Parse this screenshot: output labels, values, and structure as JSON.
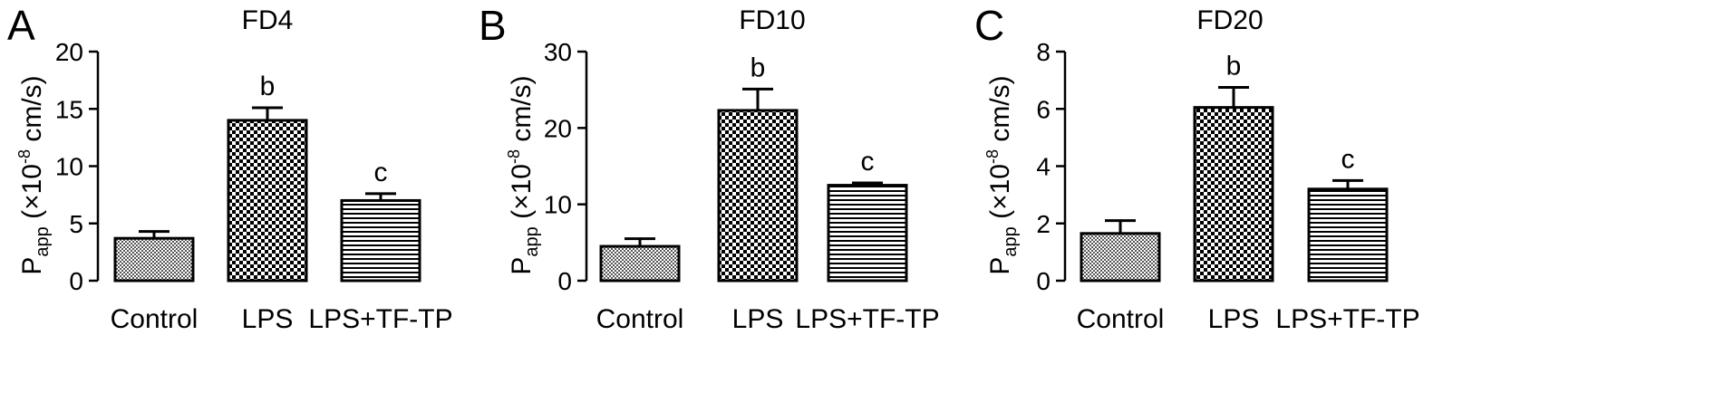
{
  "colors": {
    "axis": "#000000",
    "bar_stroke": "#000000",
    "pattern_fine": "#555555",
    "pattern_check": "#000000",
    "pattern_stripe": "#000000"
  },
  "y_label": {
    "main": "P",
    "sub": "app",
    "pre": " (×10",
    "sup": "-8",
    "post": " cm/s)"
  },
  "chart_data": [
    {
      "type": "bar",
      "panel": "A",
      "title": "FD4",
      "categories": [
        "Control",
        "LPS",
        "LPS+TF-TP"
      ],
      "values": [
        3.7,
        14.0,
        7.0
      ],
      "errors": [
        0.6,
        1.1,
        0.6
      ],
      "annotations": [
        "",
        "b",
        "c"
      ],
      "patterns": [
        "fine",
        "check",
        "stripe"
      ],
      "ylabel": "Papp (×10-8 cm/s)",
      "ylim": [
        0,
        20
      ],
      "yticks": [
        0,
        5,
        10,
        15,
        20
      ]
    },
    {
      "type": "bar",
      "panel": "B",
      "title": "FD10",
      "categories": [
        "Control",
        "LPS",
        "LPS+TF-TP"
      ],
      "values": [
        4.5,
        22.3,
        12.5
      ],
      "errors": [
        1.0,
        2.8,
        0.3
      ],
      "annotations": [
        "",
        "b",
        "c"
      ],
      "patterns": [
        "fine",
        "check",
        "stripe"
      ],
      "ylabel": "Papp (×10-8 cm/s)",
      "ylim": [
        0,
        30
      ],
      "yticks": [
        0,
        10,
        20,
        30
      ]
    },
    {
      "type": "bar",
      "panel": "C",
      "title": "FD20",
      "categories": [
        "Control",
        "LPS",
        "LPS+TF-TP"
      ],
      "values": [
        1.65,
        6.05,
        3.2
      ],
      "errors": [
        0.45,
        0.7,
        0.3
      ],
      "annotations": [
        "",
        "b",
        "c"
      ],
      "patterns": [
        "fine",
        "check",
        "stripe"
      ],
      "ylabel": "Papp (×10-8 cm/s)",
      "ylim": [
        0,
        8
      ],
      "yticks": [
        0,
        2,
        4,
        6,
        8
      ]
    }
  ]
}
